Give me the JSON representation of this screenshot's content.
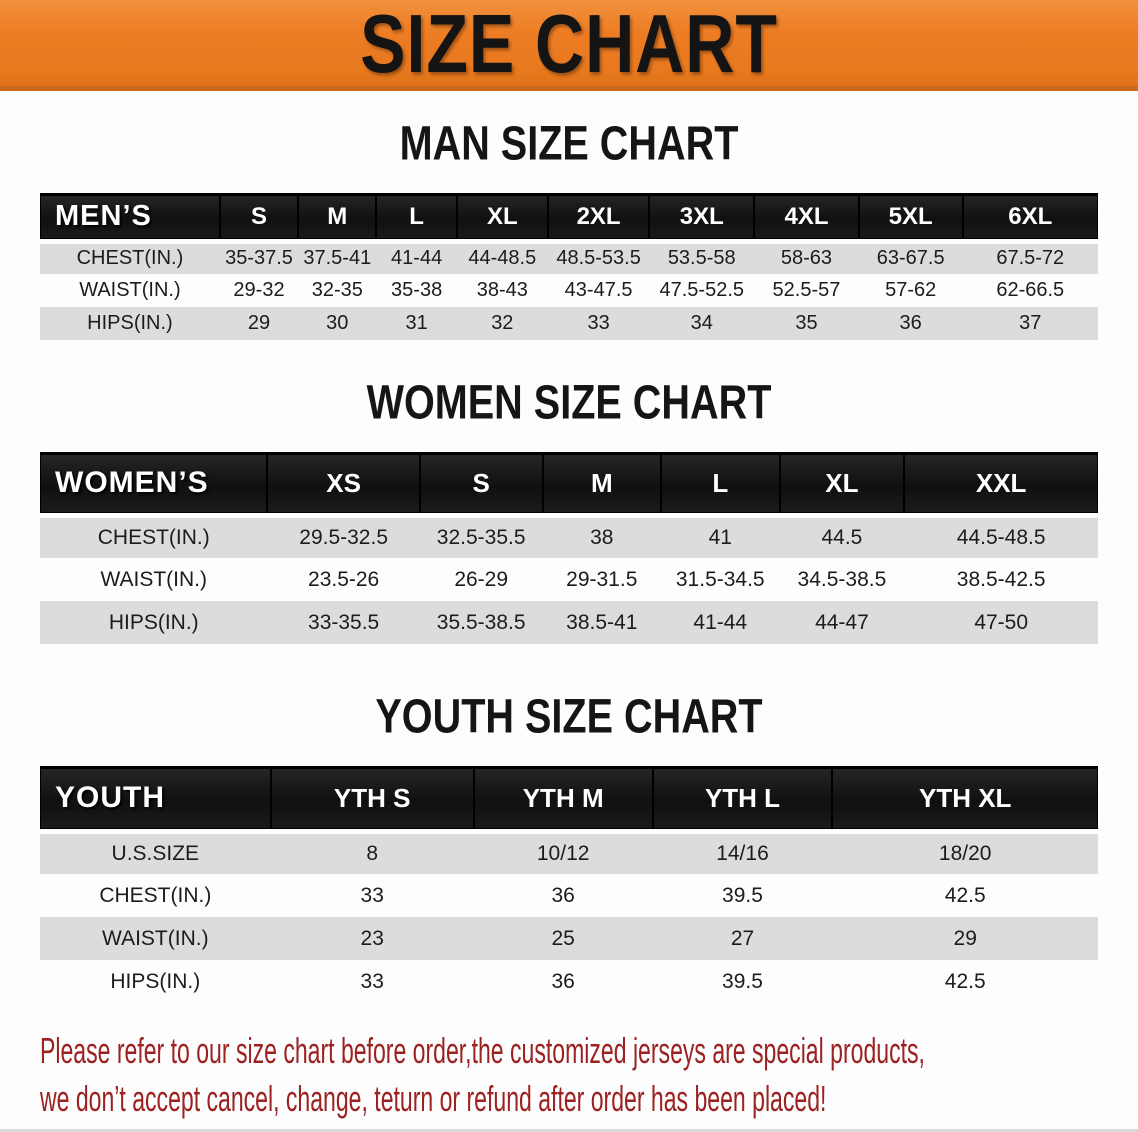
{
  "banner": {
    "title": "SIZE CHART"
  },
  "sections": [
    {
      "title": "MAN SIZE CHART",
      "header": [
        "MEN’S",
        "S",
        "M",
        "L",
        "XL",
        "2XL",
        "3XL",
        "4XL",
        "5XL",
        "6XL"
      ],
      "rows": [
        {
          "label": "CHEST(IN.)",
          "values": [
            "35-37.5",
            "37.5-41",
            "41-44",
            "44-48.5",
            "48.5-53.5",
            "53.5-58",
            "58-63",
            "63-67.5",
            "67.5-72"
          ]
        },
        {
          "label": "WAIST(IN.)",
          "values": [
            "29-32",
            "32-35",
            "35-38",
            "38-43",
            "43-47.5",
            "47.5-52.5",
            "52.5-57",
            "57-62",
            "62-66.5"
          ]
        },
        {
          "label": "HIPS(IN.)",
          "values": [
            "29",
            "30",
            "31",
            "32",
            "33",
            "34",
            "35",
            "36",
            "37"
          ]
        }
      ]
    },
    {
      "title": "WOMEN SIZE CHART",
      "header": [
        "WOMEN’S",
        "XS",
        "S",
        "M",
        "L",
        "XL",
        "XXL"
      ],
      "rows": [
        {
          "label": "CHEST(IN.)",
          "values": [
            "29.5-32.5",
            "32.5-35.5",
            "38",
            "41",
            "44.5",
            "44.5-48.5"
          ]
        },
        {
          "label": "WAIST(IN.)",
          "values": [
            "23.5-26",
            "26-29",
            "29-31.5",
            "31.5-34.5",
            "34.5-38.5",
            "38.5-42.5"
          ]
        },
        {
          "label": "HIPS(IN.)",
          "values": [
            "33-35.5",
            "35.5-38.5",
            "38.5-41",
            "41-44",
            "44-47",
            "47-50"
          ]
        }
      ]
    },
    {
      "title": "YOUTH SIZE CHART",
      "header": [
        "YOUTH",
        "YTH S",
        "YTH M",
        "YTH L",
        "YTH XL"
      ],
      "rows": [
        {
          "label": "U.S.SIZE",
          "values": [
            "8",
            "10/12",
            "14/16",
            "18/20"
          ]
        },
        {
          "label": "CHEST(IN.)",
          "values": [
            "33",
            "36",
            "39.5",
            "42.5"
          ]
        },
        {
          "label": "WAIST(IN.)",
          "values": [
            "23",
            "25",
            "27",
            "29"
          ]
        },
        {
          "label": "HIPS(IN.)",
          "values": [
            "33",
            "36",
            "39.5",
            "42.5"
          ]
        }
      ]
    }
  ],
  "footer": {
    "line1": "Please refer to our size chart before order,the customized jerseys are special products,",
    "line2": "we don’t accept cancel, change, teturn or refund after order has been placed!"
  },
  "colors": {
    "banner_bg": "#ed7c23",
    "banner_bg_dark": "#c96a1c",
    "header_bar": "#161616",
    "row_stripe": "#dcdcdc",
    "footer_text": "#9c2121",
    "page_bg": "#fdfdfd"
  }
}
